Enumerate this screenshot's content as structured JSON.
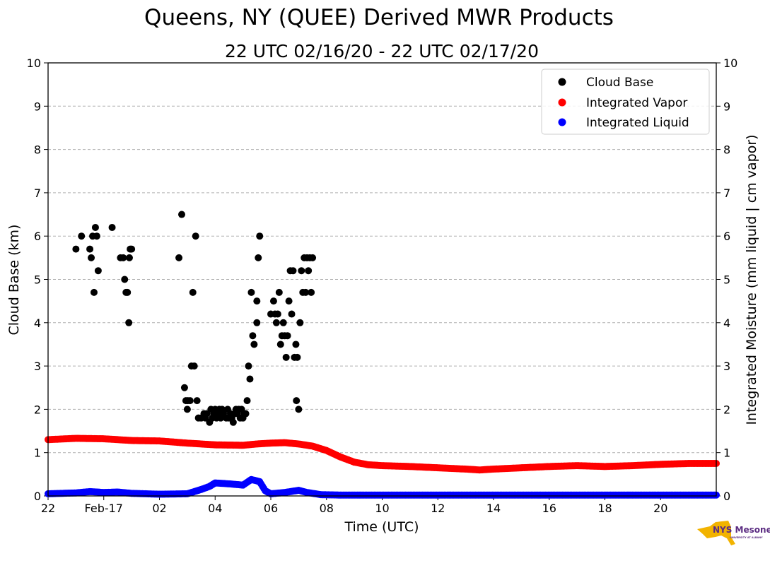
{
  "chart_data": {
    "type": "scatter",
    "title": "Queens, NY (QUEE) Derived MWR Products",
    "subtitle": "22 UTC 02/16/20 - 22 UTC 02/17/20",
    "xlabel": "Time (UTC)",
    "ylabel_left": "Cloud Base (km)",
    "ylabel_right": "Integrated Moisture (mm liquid | cm vapor)",
    "xlim_hours_since_start": [
      0,
      24
    ],
    "ylim": [
      0,
      10
    ],
    "x_ticks": [
      {
        "hour": 0,
        "label": "22"
      },
      {
        "hour": 2,
        "label": "Feb-17"
      },
      {
        "hour": 4,
        "label": "02"
      },
      {
        "hour": 6,
        "label": "04"
      },
      {
        "hour": 8,
        "label": "06"
      },
      {
        "hour": 10,
        "label": "08"
      },
      {
        "hour": 12,
        "label": "10"
      },
      {
        "hour": 14,
        "label": "12"
      },
      {
        "hour": 16,
        "label": "14"
      },
      {
        "hour": 18,
        "label": "16"
      },
      {
        "hour": 20,
        "label": "18"
      },
      {
        "hour": 22,
        "label": "20"
      }
    ],
    "y_ticks": [
      "0",
      "1",
      "2",
      "3",
      "4",
      "5",
      "6",
      "7",
      "8",
      "9",
      "10"
    ],
    "grid": "horizontal dashed",
    "legend_position": "top-right",
    "series": [
      {
        "name": "Cloud Base",
        "color": "#000000",
        "points": [
          [
            1.0,
            5.7
          ],
          [
            1.2,
            6.0
          ],
          [
            1.5,
            5.7
          ],
          [
            1.55,
            5.5
          ],
          [
            1.6,
            6.0
          ],
          [
            1.65,
            4.7
          ],
          [
            1.7,
            6.2
          ],
          [
            1.75,
            6.0
          ],
          [
            1.8,
            5.2
          ],
          [
            2.3,
            6.2
          ],
          [
            2.6,
            5.5
          ],
          [
            2.7,
            5.5
          ],
          [
            2.75,
            5.0
          ],
          [
            2.8,
            4.7
          ],
          [
            2.85,
            4.7
          ],
          [
            2.9,
            4.0
          ],
          [
            2.92,
            5.5
          ],
          [
            2.95,
            5.7
          ],
          [
            3.0,
            5.7
          ],
          [
            4.7,
            5.5
          ],
          [
            4.8,
            6.5
          ],
          [
            4.9,
            2.5
          ],
          [
            4.95,
            2.2
          ],
          [
            5.0,
            2.0
          ],
          [
            5.02,
            2.2
          ],
          [
            5.1,
            2.2
          ],
          [
            5.15,
            3.0
          ],
          [
            5.2,
            4.7
          ],
          [
            5.25,
            3.0
          ],
          [
            5.3,
            6.0
          ],
          [
            5.35,
            2.2
          ],
          [
            5.4,
            1.8
          ],
          [
            5.5,
            1.8
          ],
          [
            5.6,
            1.9
          ],
          [
            5.65,
            1.8
          ],
          [
            5.7,
            1.9
          ],
          [
            5.8,
            1.7
          ],
          [
            5.85,
            2.0
          ],
          [
            5.9,
            1.8
          ],
          [
            5.95,
            1.9
          ],
          [
            6.0,
            2.0
          ],
          [
            6.05,
            1.8
          ],
          [
            6.1,
            1.9
          ],
          [
            6.15,
            2.0
          ],
          [
            6.2,
            1.8
          ],
          [
            6.25,
            2.0
          ],
          [
            6.3,
            1.9
          ],
          [
            6.4,
            1.8
          ],
          [
            6.45,
            2.0
          ],
          [
            6.5,
            1.8
          ],
          [
            6.55,
            1.9
          ],
          [
            6.6,
            1.8
          ],
          [
            6.65,
            1.7
          ],
          [
            6.7,
            1.9
          ],
          [
            6.75,
            2.0
          ],
          [
            6.8,
            1.9
          ],
          [
            6.85,
            2.0
          ],
          [
            6.9,
            1.8
          ],
          [
            6.95,
            2.0
          ],
          [
            7.0,
            1.8
          ],
          [
            7.05,
            1.9
          ],
          [
            7.1,
            1.9
          ],
          [
            7.15,
            2.2
          ],
          [
            7.2,
            3.0
          ],
          [
            7.25,
            2.7
          ],
          [
            7.3,
            4.7
          ],
          [
            7.35,
            3.7
          ],
          [
            7.4,
            3.5
          ],
          [
            7.5,
            4.0
          ],
          [
            7.55,
            5.5
          ],
          [
            7.6,
            6.0
          ],
          [
            7.5,
            4.5
          ],
          [
            8.0,
            4.2
          ],
          [
            8.1,
            4.5
          ],
          [
            8.15,
            4.2
          ],
          [
            8.2,
            4.0
          ],
          [
            8.25,
            4.2
          ],
          [
            8.3,
            4.7
          ],
          [
            8.35,
            3.5
          ],
          [
            8.4,
            3.7
          ],
          [
            8.45,
            4.0
          ],
          [
            8.5,
            3.7
          ],
          [
            8.55,
            3.2
          ],
          [
            8.6,
            3.7
          ],
          [
            8.65,
            4.5
          ],
          [
            8.7,
            5.2
          ],
          [
            8.75,
            4.2
          ],
          [
            8.8,
            5.2
          ],
          [
            8.85,
            3.2
          ],
          [
            8.9,
            3.5
          ],
          [
            8.92,
            2.2
          ],
          [
            8.95,
            3.2
          ],
          [
            9.0,
            2.0
          ],
          [
            9.05,
            4.0
          ],
          [
            9.1,
            5.2
          ],
          [
            9.15,
            4.7
          ],
          [
            9.2,
            5.5
          ],
          [
            9.25,
            4.7
          ],
          [
            9.3,
            5.5
          ],
          [
            9.35,
            5.2
          ],
          [
            9.4,
            5.5
          ],
          [
            9.45,
            4.7
          ],
          [
            9.5,
            5.5
          ]
        ]
      },
      {
        "name": "Integrated Vapor",
        "color": "#ff0000",
        "points": [
          [
            0,
            1.3
          ],
          [
            1,
            1.33
          ],
          [
            2,
            1.32
          ],
          [
            2.5,
            1.3
          ],
          [
            3,
            1.28
          ],
          [
            4,
            1.27
          ],
          [
            5,
            1.22
          ],
          [
            5.5,
            1.2
          ],
          [
            6,
            1.18
          ],
          [
            7,
            1.17
          ],
          [
            7.5,
            1.2
          ],
          [
            8,
            1.22
          ],
          [
            8.5,
            1.23
          ],
          [
            9,
            1.2
          ],
          [
            9.5,
            1.15
          ],
          [
            10,
            1.05
          ],
          [
            10.5,
            0.9
          ],
          [
            11,
            0.78
          ],
          [
            11.5,
            0.72
          ],
          [
            12,
            0.7
          ],
          [
            13,
            0.68
          ],
          [
            14,
            0.65
          ],
          [
            15,
            0.62
          ],
          [
            15.5,
            0.6
          ],
          [
            16,
            0.62
          ],
          [
            17,
            0.65
          ],
          [
            18,
            0.68
          ],
          [
            19,
            0.7
          ],
          [
            20,
            0.68
          ],
          [
            21,
            0.7
          ],
          [
            22,
            0.73
          ],
          [
            23,
            0.75
          ],
          [
            24,
            0.75
          ]
        ]
      },
      {
        "name": "Integrated Liquid",
        "color": "#0000ff",
        "points": [
          [
            0,
            0.05
          ],
          [
            1,
            0.07
          ],
          [
            1.5,
            0.1
          ],
          [
            2,
            0.08
          ],
          [
            2.5,
            0.09
          ],
          [
            3,
            0.06
          ],
          [
            4,
            0.04
          ],
          [
            5,
            0.05
          ],
          [
            5.5,
            0.15
          ],
          [
            5.8,
            0.22
          ],
          [
            6.0,
            0.3
          ],
          [
            6.5,
            0.28
          ],
          [
            7.0,
            0.25
          ],
          [
            7.3,
            0.38
          ],
          [
            7.6,
            0.33
          ],
          [
            7.8,
            0.12
          ],
          [
            8.0,
            0.05
          ],
          [
            8.5,
            0.08
          ],
          [
            9.0,
            0.13
          ],
          [
            9.3,
            0.08
          ],
          [
            9.8,
            0.03
          ],
          [
            10.5,
            0.02
          ],
          [
            12,
            0.02
          ],
          [
            24,
            0.02
          ]
        ]
      }
    ]
  },
  "logo": {
    "brand": "NYS Mesonet",
    "tagline": "UNIVERSITY AT ALBANY",
    "colors": {
      "state": "#f2b300",
      "text": "#5b2c82"
    }
  }
}
